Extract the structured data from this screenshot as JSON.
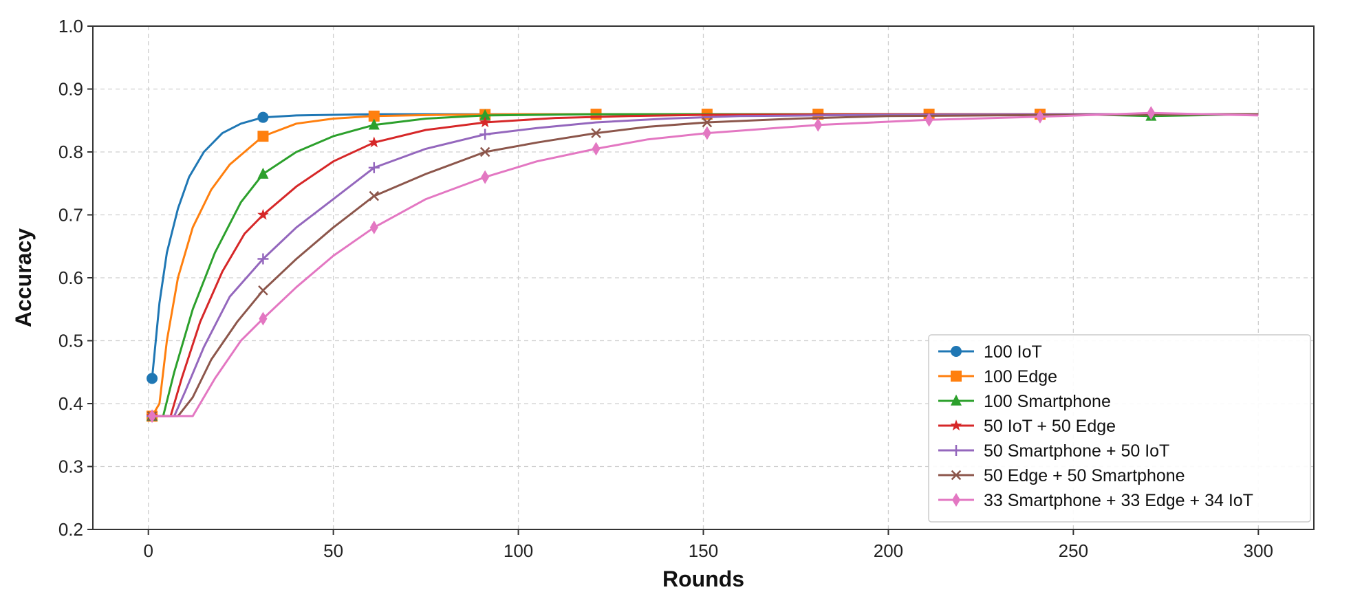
{
  "chart_data": {
    "type": "line",
    "title": "",
    "xlabel": "Rounds",
    "ylabel": "Accuracy",
    "xlim": [
      -15,
      315
    ],
    "ylim": [
      0.2,
      1.0
    ],
    "xticks": [
      0,
      50,
      100,
      150,
      200,
      250,
      300
    ],
    "yticks": [
      0.2,
      0.3,
      0.4,
      0.5,
      0.6,
      0.7,
      0.8,
      0.9,
      1.0
    ],
    "grid": true,
    "legend_position": "lower-right",
    "series": [
      {
        "name": "100 IoT",
        "color": "#1f77b4",
        "marker": "circle",
        "x": [
          1,
          3,
          5,
          8,
          11,
          15,
          20,
          25,
          31,
          40,
          50,
          61,
          100,
          150,
          200,
          250,
          300
        ],
        "y": [
          0.44,
          0.56,
          0.64,
          0.71,
          0.76,
          0.8,
          0.83,
          0.845,
          0.855,
          0.858,
          0.859,
          0.86,
          0.86,
          0.86,
          0.86,
          0.86,
          0.86
        ],
        "marker_x": [
          1,
          31
        ]
      },
      {
        "name": "100 Edge",
        "color": "#ff7f0e",
        "marker": "square",
        "x": [
          1,
          3,
          5,
          8,
          12,
          17,
          22,
          27,
          31,
          40,
          50,
          61,
          80,
          100,
          150,
          200,
          250,
          300
        ],
        "y": [
          0.38,
          0.4,
          0.5,
          0.6,
          0.68,
          0.74,
          0.78,
          0.805,
          0.825,
          0.845,
          0.853,
          0.857,
          0.859,
          0.86,
          0.86,
          0.86,
          0.86,
          0.86
        ],
        "marker_x": [
          1,
          31,
          61,
          91,
          121,
          151,
          181,
          211,
          241
        ]
      },
      {
        "name": "100 Smartphone",
        "color": "#2ca02c",
        "marker": "triangle",
        "x": [
          1,
          4,
          7,
          12,
          18,
          25,
          31,
          40,
          50,
          61,
          75,
          91,
          120,
          150,
          200,
          250,
          271,
          300
        ],
        "y": [
          0.38,
          0.38,
          0.45,
          0.55,
          0.64,
          0.72,
          0.765,
          0.8,
          0.825,
          0.843,
          0.853,
          0.858,
          0.86,
          0.86,
          0.86,
          0.86,
          0.857,
          0.86
        ],
        "marker_x": [
          1,
          31,
          61,
          91,
          271
        ]
      },
      {
        "name": "50 IoT + 50 Edge",
        "color": "#d62728",
        "marker": "star",
        "x": [
          1,
          6,
          9,
          14,
          20,
          26,
          31,
          40,
          50,
          61,
          75,
          91,
          110,
          130,
          150,
          200,
          250,
          300
        ],
        "y": [
          0.38,
          0.38,
          0.44,
          0.53,
          0.61,
          0.67,
          0.7,
          0.745,
          0.785,
          0.815,
          0.835,
          0.847,
          0.854,
          0.857,
          0.859,
          0.86,
          0.86,
          0.86
        ],
        "marker_x": [
          1,
          31,
          61,
          91
        ]
      },
      {
        "name": "50 Smartphone + 50 IoT",
        "color": "#9467bd",
        "marker": "plus",
        "x": [
          1,
          7,
          10,
          15,
          22,
          31,
          40,
          50,
          61,
          75,
          91,
          105,
          121,
          140,
          160,
          200,
          250,
          300
        ],
        "y": [
          0.38,
          0.38,
          0.42,
          0.49,
          0.57,
          0.63,
          0.68,
          0.725,
          0.775,
          0.805,
          0.828,
          0.838,
          0.847,
          0.853,
          0.857,
          0.859,
          0.86,
          0.86
        ],
        "marker_x": [
          1,
          31,
          61,
          91
        ]
      },
      {
        "name": "50 Edge + 50 Smartphone",
        "color": "#8c564b",
        "marker": "x",
        "x": [
          1,
          8,
          12,
          17,
          24,
          31,
          40,
          50,
          61,
          75,
          91,
          105,
          121,
          135,
          151,
          175,
          200,
          250,
          300
        ],
        "y": [
          0.38,
          0.38,
          0.41,
          0.47,
          0.53,
          0.58,
          0.63,
          0.68,
          0.73,
          0.765,
          0.8,
          0.815,
          0.83,
          0.84,
          0.847,
          0.853,
          0.857,
          0.859,
          0.86
        ],
        "marker_x": [
          1,
          31,
          61,
          91,
          121,
          151
        ]
      },
      {
        "name": "33 Smartphone + 33 Edge + 34 IoT",
        "color": "#e377c2",
        "marker": "diamond",
        "x": [
          1,
          8,
          12,
          18,
          25,
          31,
          40,
          50,
          61,
          75,
          91,
          105,
          121,
          135,
          151,
          181,
          211,
          241,
          271,
          300
        ],
        "y": [
          0.38,
          0.38,
          0.38,
          0.44,
          0.5,
          0.535,
          0.585,
          0.635,
          0.68,
          0.725,
          0.76,
          0.785,
          0.805,
          0.82,
          0.83,
          0.843,
          0.851,
          0.856,
          0.862,
          0.858
        ],
        "marker_x": [
          1,
          31,
          61,
          91,
          121,
          151,
          181,
          211,
          241,
          271
        ]
      }
    ]
  }
}
